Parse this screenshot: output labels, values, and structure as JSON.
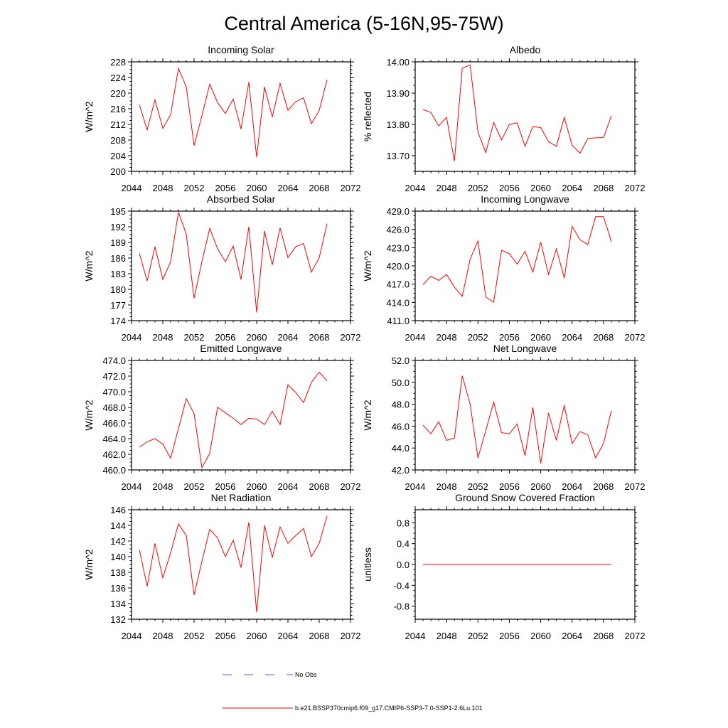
{
  "figure": {
    "title": "Central America (5-16N,95-75W)"
  },
  "legend": [
    {
      "label": "No Obs",
      "color": "#5a5acd",
      "dash": true
    },
    {
      "label": "b.e21.BSSP370cmip6.f09_g17.CMIP6-SSP3-7.0-SSP1-2.6Lu.101",
      "color": "#ff0000",
      "dash": false
    }
  ],
  "chart_data": [
    {
      "type": "line",
      "title": "Incoming Solar",
      "ylabel": "W/m^2",
      "xlim": [
        2044,
        2072
      ],
      "ylim": [
        200,
        228
      ],
      "xticks": [
        2044,
        2048,
        2052,
        2056,
        2060,
        2064,
        2068,
        2072
      ],
      "yticks": [
        200,
        204,
        208,
        212,
        216,
        220,
        224,
        228
      ],
      "ytick_labels": [
        "200",
        "204",
        "208",
        "212",
        "216",
        "220",
        "224",
        "228"
      ],
      "x": [
        2045,
        2046,
        2047,
        2048,
        2049,
        2050,
        2051,
        2052,
        2053,
        2054,
        2055,
        2056,
        2057,
        2058,
        2059,
        2060,
        2061,
        2062,
        2063,
        2064,
        2065,
        2066,
        2067,
        2068,
        2069
      ],
      "series": [
        {
          "color": "#ff0000",
          "values": [
            217.0,
            210.6,
            218.3,
            211.0,
            214.5,
            226.3,
            221.6,
            206.6,
            214.2,
            222.3,
            217.6,
            214.8,
            218.5,
            210.8,
            222.8,
            203.6,
            221.6,
            213.9,
            222.5,
            215.6,
            217.8,
            218.8,
            212.2,
            215.6,
            223.4
          ]
        }
      ]
    },
    {
      "type": "line",
      "title": "Albedo",
      "ylabel": "% reflected",
      "xlim": [
        2044,
        2072
      ],
      "ylim": [
        13.65,
        14.0
      ],
      "xticks": [
        2044,
        2048,
        2052,
        2056,
        2060,
        2064,
        2068,
        2072
      ],
      "yticks": [
        13.7,
        13.8,
        13.9,
        14.0
      ],
      "ytick_labels": [
        "13.70",
        "13.80",
        "13.90",
        "14.00"
      ],
      "x": [
        2045,
        2046,
        2047,
        2048,
        2049,
        2050,
        2051,
        2052,
        2053,
        2054,
        2055,
        2056,
        2057,
        2058,
        2059,
        2060,
        2061,
        2062,
        2063,
        2064,
        2065,
        2066,
        2067,
        2068,
        2069
      ],
      "series": [
        {
          "color": "#ff0000",
          "values": [
            13.848,
            13.838,
            13.795,
            13.823,
            13.683,
            13.98,
            13.99,
            13.775,
            13.71,
            13.806,
            13.75,
            13.8,
            13.805,
            13.73,
            13.793,
            13.79,
            13.745,
            13.73,
            13.822,
            13.733,
            13.708,
            13.755,
            13.757,
            13.758,
            13.827
          ]
        }
      ]
    },
    {
      "type": "line",
      "title": "Absorbed Solar",
      "ylabel": "W/m^2",
      "xlim": [
        2044,
        2072
      ],
      "ylim": [
        174,
        195
      ],
      "xticks": [
        2044,
        2048,
        2052,
        2056,
        2060,
        2064,
        2068,
        2072
      ],
      "yticks": [
        174,
        177,
        180,
        183,
        186,
        189,
        192,
        195
      ],
      "ytick_labels": [
        "174",
        "177",
        "180",
        "183",
        "186",
        "189",
        "192",
        "195"
      ],
      "x": [
        2045,
        2046,
        2047,
        2048,
        2049,
        2050,
        2051,
        2052,
        2053,
        2054,
        2055,
        2056,
        2057,
        2058,
        2059,
        2060,
        2061,
        2062,
        2063,
        2064,
        2065,
        2066,
        2067,
        2068,
        2069
      ],
      "series": [
        {
          "color": "#ff0000",
          "values": [
            186.9,
            181.6,
            188.2,
            181.9,
            185.3,
            194.8,
            190.6,
            178.3,
            185.3,
            191.7,
            187.8,
            185.3,
            188.3,
            181.9,
            192.0,
            175.6,
            191.2,
            184.7,
            191.8,
            186.1,
            188.2,
            188.8,
            183.3,
            186.1,
            192.6
          ]
        }
      ]
    },
    {
      "type": "line",
      "title": "Incoming Longwave",
      "ylabel": "W/m^2",
      "xlim": [
        2044,
        2072
      ],
      "ylim": [
        411,
        429
      ],
      "xticks": [
        2044,
        2048,
        2052,
        2056,
        2060,
        2064,
        2068,
        2072
      ],
      "yticks": [
        411,
        414,
        417,
        420,
        423,
        426,
        429
      ],
      "ytick_labels": [
        "411.0",
        "414.0",
        "417.0",
        "420.0",
        "423.0",
        "426.0",
        "429.0"
      ],
      "x": [
        2045,
        2046,
        2047,
        2048,
        2049,
        2050,
        2051,
        2052,
        2053,
        2054,
        2055,
        2056,
        2057,
        2058,
        2059,
        2060,
        2061,
        2062,
        2063,
        2064,
        2065,
        2066,
        2067,
        2068,
        2069
      ],
      "series": [
        {
          "color": "#ff0000",
          "values": [
            416.9,
            418.3,
            417.6,
            418.6,
            416.5,
            415.0,
            421.1,
            424.1,
            414.9,
            414.0,
            422.6,
            422.0,
            420.3,
            422.4,
            419.0,
            423.9,
            418.6,
            422.8,
            418.0,
            426.5,
            424.3,
            423.5,
            428.1,
            428.1,
            424.0
          ]
        }
      ]
    },
    {
      "type": "line",
      "title": "Emitted Longwave",
      "ylabel": "W/m^2",
      "xlim": [
        2044,
        2072
      ],
      "ylim": [
        460,
        474
      ],
      "xticks": [
        2044,
        2048,
        2052,
        2056,
        2060,
        2064,
        2068,
        2072
      ],
      "yticks": [
        460,
        462,
        464,
        466,
        468,
        470,
        472,
        474
      ],
      "ytick_labels": [
        "460.0",
        "462.0",
        "464.0",
        "466.0",
        "468.0",
        "470.0",
        "472.0",
        "474.0"
      ],
      "x": [
        2045,
        2046,
        2047,
        2048,
        2049,
        2050,
        2051,
        2052,
        2053,
        2054,
        2055,
        2056,
        2057,
        2058,
        2059,
        2060,
        2061,
        2062,
        2063,
        2064,
        2065,
        2066,
        2067,
        2068,
        2069
      ],
      "series": [
        {
          "color": "#ff0000",
          "values": [
            462.9,
            463.6,
            464.0,
            463.3,
            461.5,
            465.3,
            469.1,
            467.2,
            460.3,
            462.1,
            468.0,
            467.3,
            466.6,
            465.8,
            466.6,
            466.5,
            465.8,
            467.5,
            465.8,
            470.9,
            469.9,
            468.6,
            471.2,
            472.5,
            471.4
          ]
        }
      ]
    },
    {
      "type": "line",
      "title": "Net Longwave",
      "ylabel": "W/m^2",
      "xlim": [
        2044,
        2072
      ],
      "ylim": [
        42,
        52
      ],
      "xticks": [
        2044,
        2048,
        2052,
        2056,
        2060,
        2064,
        2068,
        2072
      ],
      "yticks": [
        42,
        44,
        46,
        48,
        50,
        52
      ],
      "ytick_labels": [
        "42.0",
        "44.0",
        "46.0",
        "48.0",
        "50.0",
        "52.0"
      ],
      "x": [
        2045,
        2046,
        2047,
        2048,
        2049,
        2050,
        2051,
        2052,
        2053,
        2054,
        2055,
        2056,
        2057,
        2058,
        2059,
        2060,
        2061,
        2062,
        2063,
        2064,
        2065,
        2066,
        2067,
        2068,
        2069
      ],
      "series": [
        {
          "color": "#ff0000",
          "values": [
            46.1,
            45.3,
            46.4,
            44.7,
            44.9,
            50.6,
            48.0,
            43.1,
            45.6,
            48.2,
            45.4,
            45.3,
            46.2,
            43.3,
            47.7,
            42.6,
            47.2,
            44.7,
            47.9,
            44.4,
            45.5,
            45.2,
            43.1,
            44.4,
            47.4
          ]
        }
      ]
    },
    {
      "type": "line",
      "title": "Net Radiation",
      "ylabel": "W/m^2",
      "xlim": [
        2044,
        2072
      ],
      "ylim": [
        132,
        146
      ],
      "xticks": [
        2044,
        2048,
        2052,
        2056,
        2060,
        2064,
        2068,
        2072
      ],
      "yticks": [
        132,
        134,
        136,
        138,
        140,
        142,
        144,
        146
      ],
      "ytick_labels": [
        "132",
        "134",
        "136",
        "138",
        "140",
        "142",
        "144",
        "146"
      ],
      "x": [
        2045,
        2046,
        2047,
        2048,
        2049,
        2050,
        2051,
        2052,
        2053,
        2054,
        2055,
        2056,
        2057,
        2058,
        2059,
        2060,
        2061,
        2062,
        2063,
        2064,
        2065,
        2066,
        2067,
        2068,
        2069
      ],
      "series": [
        {
          "color": "#ff0000",
          "values": [
            140.9,
            136.2,
            141.7,
            137.3,
            140.5,
            144.2,
            142.7,
            135.1,
            139.4,
            143.5,
            142.4,
            140.0,
            142.1,
            138.6,
            144.4,
            132.9,
            144.0,
            139.9,
            143.8,
            141.7,
            142.7,
            143.6,
            140.0,
            141.7,
            145.2
          ]
        }
      ]
    },
    {
      "type": "line",
      "title": "Ground Snow Covered Fraction",
      "ylabel": "unitless",
      "xlim": [
        2044,
        2072
      ],
      "ylim": [
        -1.05,
        1.05
      ],
      "xticks": [
        2044,
        2048,
        2052,
        2056,
        2060,
        2064,
        2068,
        2072
      ],
      "yticks": [
        -0.8,
        -0.4,
        0.0,
        0.4,
        0.8
      ],
      "ytick_labels": [
        "-0.8",
        "-0.4",
        "0.0",
        "0.4",
        "0.8"
      ],
      "x": [
        2045,
        2046,
        2047,
        2048,
        2049,
        2050,
        2051,
        2052,
        2053,
        2054,
        2055,
        2056,
        2057,
        2058,
        2059,
        2060,
        2061,
        2062,
        2063,
        2064,
        2065,
        2066,
        2067,
        2068,
        2069
      ],
      "series": [
        {
          "color": "#ff0000",
          "values": [
            0,
            0,
            0,
            0,
            0,
            0,
            0,
            0,
            0,
            0,
            0,
            0,
            0,
            0,
            0,
            0,
            0,
            0,
            0,
            0,
            0,
            0,
            0,
            0,
            0
          ]
        }
      ]
    }
  ]
}
